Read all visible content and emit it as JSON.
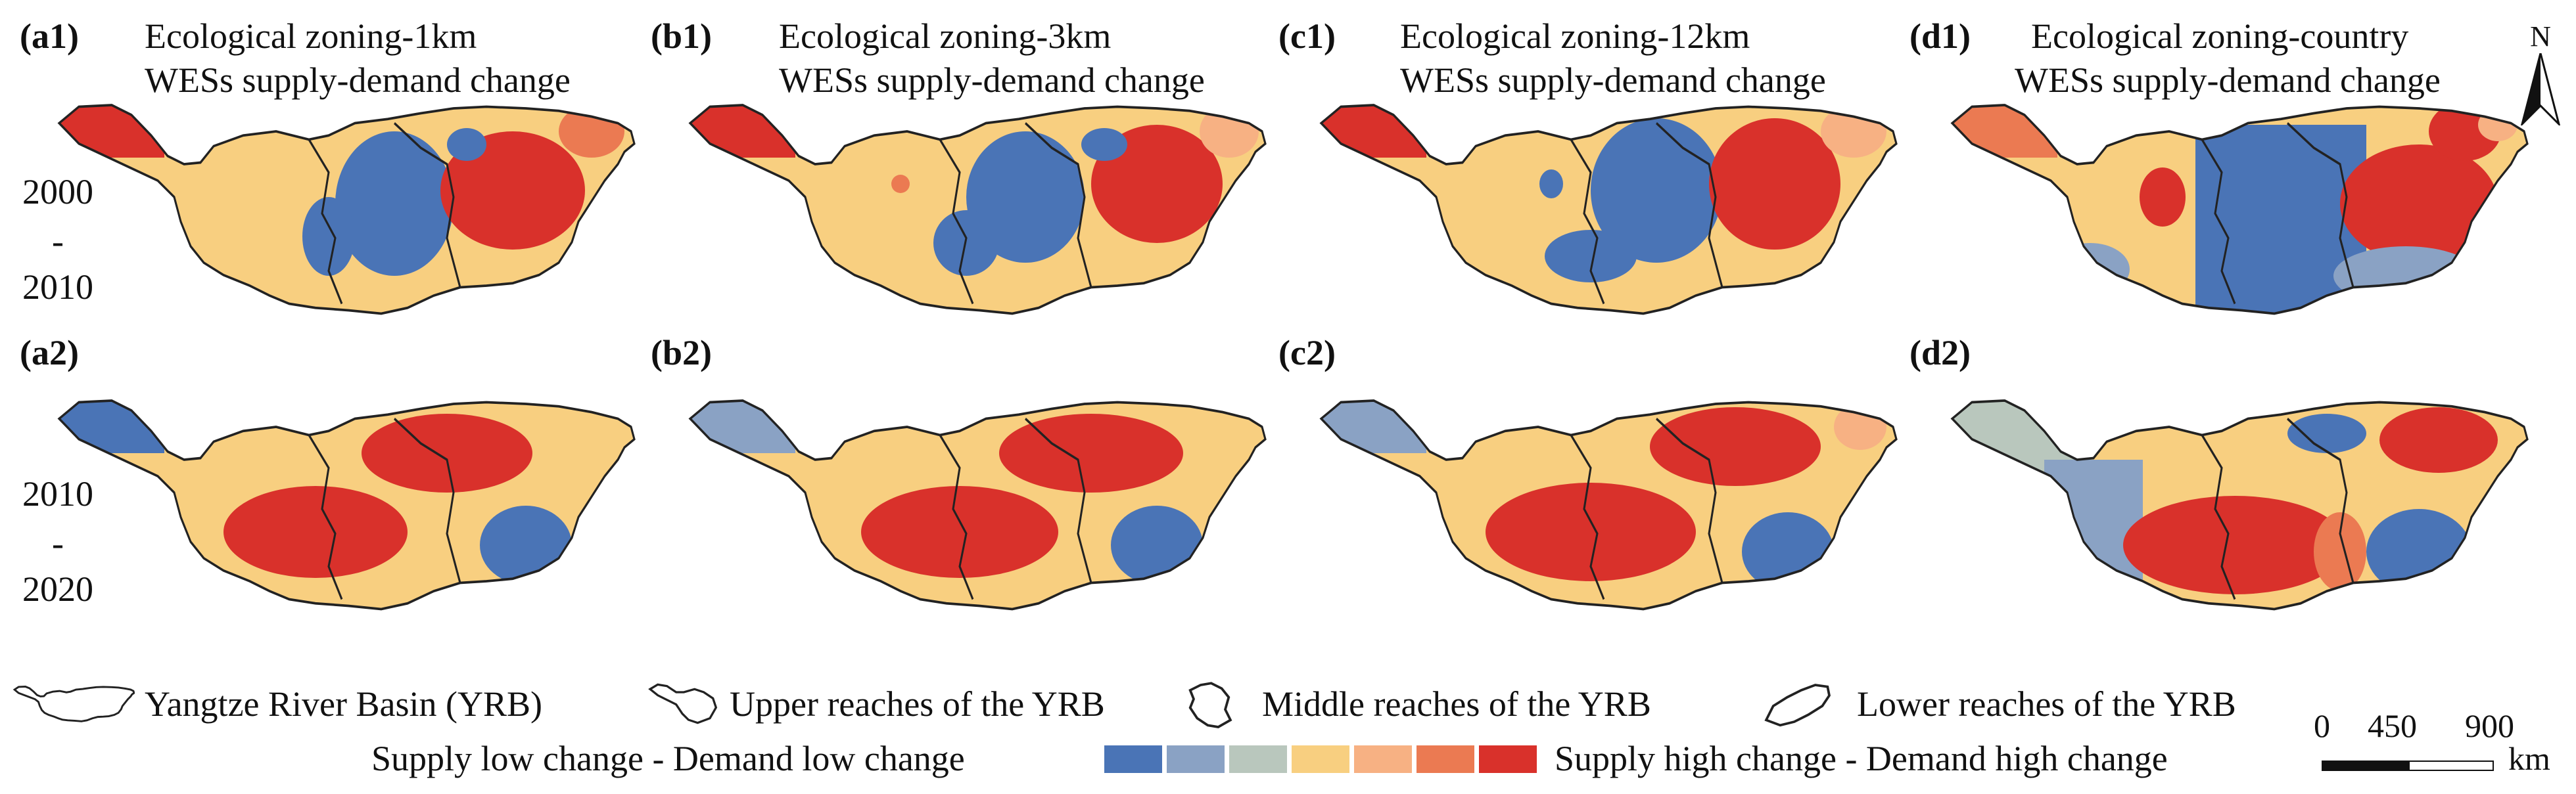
{
  "panels": {
    "a1": {
      "letter": "(a1)",
      "title1": "Ecological zoning-1km",
      "title2": "WESs supply-demand change"
    },
    "b1": {
      "letter": "(b1)",
      "title1": "Ecological zoning-3km",
      "title2": "WESs supply-demand change"
    },
    "c1": {
      "letter": "(c1)",
      "title1": "Ecological zoning-12km",
      "title2": "WESs supply-demand change"
    },
    "d1": {
      "letter": "(d1)",
      "title1": "Ecological zoning-country",
      "title2": "WESs supply-demand change"
    },
    "a2": {
      "letter": "(a2)"
    },
    "b2": {
      "letter": "(b2)"
    },
    "c2": {
      "letter": "(c2)"
    },
    "d2": {
      "letter": "(d2)"
    }
  },
  "periods": [
    {
      "start": "2000",
      "dash": "-",
      "end": "2010"
    },
    {
      "start": "2010",
      "dash": "-",
      "end": "2020"
    }
  ],
  "north_label": "N",
  "legend": {
    "basin_items": [
      "Yangtze River Basin (YRB)",
      "Upper reaches of the YRB",
      "Middle reaches of the YRB",
      "Lower reaches of the YRB"
    ],
    "low_label": "Supply low change - Demand low change",
    "high_label": "Supply high change - Demand high change",
    "colors": [
      "#4a74b6",
      "#8aa2c4",
      "#b9c7bd",
      "#f8cf80",
      "#f7b183",
      "#eb7a52",
      "#d9312b"
    ]
  },
  "scale_bar": {
    "ticks": [
      "0",
      "450",
      "900"
    ],
    "unit": "km"
  }
}
